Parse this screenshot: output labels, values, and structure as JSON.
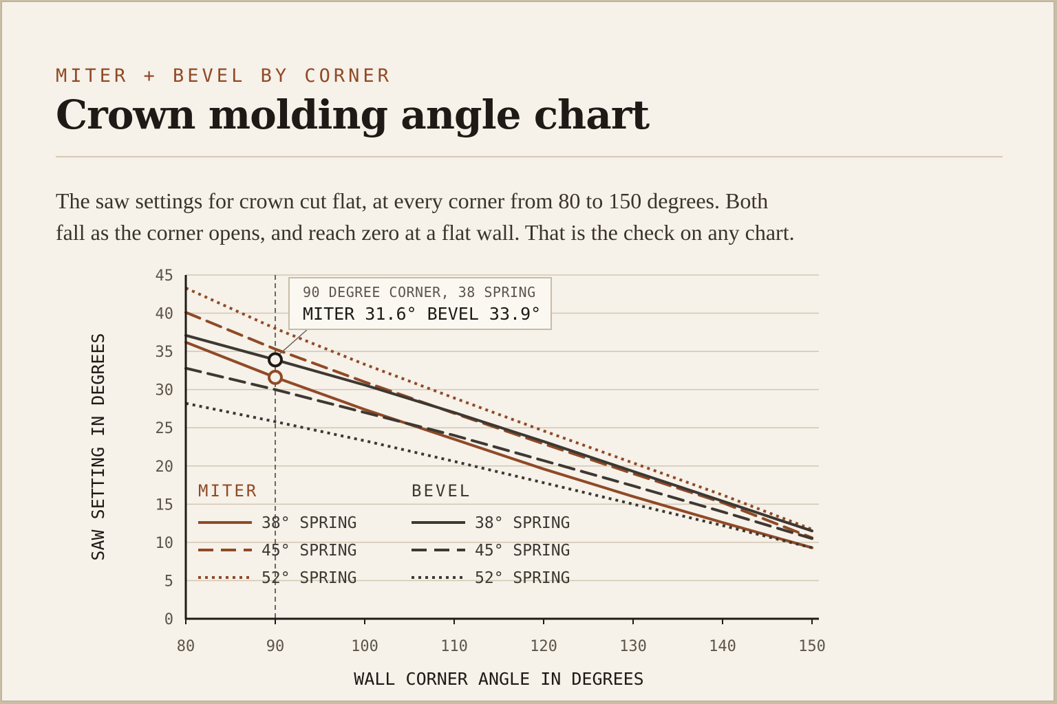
{
  "header": {
    "eyebrow": "MITER + BEVEL BY CORNER",
    "title": "Crown molding angle chart",
    "description_lines": [
      "The saw settings for crown cut flat, at every corner from 80 to 150 degrees. Both",
      "fall as the corner opens, and reach zero at a flat wall. That is the check on any chart."
    ]
  },
  "colors": {
    "miter": "#8f4a26",
    "bevel": "#3d3832",
    "grid": "#d2c7b1",
    "axis": "#1e1a15",
    "background": "#f6f1e9"
  },
  "chart_data": {
    "type": "line",
    "xlabel": "WALL CORNER ANGLE IN DEGREES",
    "ylabel": "SAW SETTING IN DEGREES",
    "xlim": [
      80,
      150
    ],
    "ylim": [
      0,
      45
    ],
    "x_ticks": [
      80,
      90,
      100,
      110,
      120,
      130,
      140,
      150
    ],
    "y_ticks": [
      0,
      5,
      10,
      15,
      20,
      25,
      30,
      35,
      40,
      45
    ],
    "grid": true,
    "x": [
      80,
      90,
      100,
      110,
      120,
      130,
      140,
      150
    ],
    "series": [
      {
        "group": "miter",
        "name": "38° SPRING",
        "style": "solid",
        "values": [
          36.2,
          31.6,
          27.4,
          23.5,
          19.6,
          16.0,
          12.6,
          9.3
        ]
      },
      {
        "group": "miter",
        "name": "45° SPRING",
        "style": "dashed",
        "values": [
          40.1,
          35.3,
          31.0,
          26.9,
          22.9,
          19.0,
          15.2,
          10.6
        ]
      },
      {
        "group": "miter",
        "name": "52° SPRING",
        "style": "dotted",
        "values": [
          43.3,
          38.0,
          33.3,
          28.9,
          24.6,
          20.4,
          16.2,
          11.7
        ]
      },
      {
        "group": "bevel",
        "name": "38° SPRING",
        "style": "solid",
        "values": [
          37.1,
          33.9,
          30.6,
          27.0,
          23.2,
          19.3,
          15.4,
          11.5
        ]
      },
      {
        "group": "bevel",
        "name": "45° SPRING",
        "style": "dashed",
        "values": [
          32.8,
          30.0,
          27.0,
          24.0,
          20.7,
          17.4,
          14.0,
          10.5
        ]
      },
      {
        "group": "bevel",
        "name": "52° SPRING",
        "style": "dotted",
        "values": [
          28.2,
          25.8,
          23.3,
          20.6,
          17.8,
          15.0,
          12.2,
          9.3
        ]
      }
    ],
    "legend": {
      "position": "bottom-left",
      "miter_title": "MITER",
      "bevel_title": "BEVEL"
    },
    "highlight": {
      "x": 90,
      "miter": 31.6,
      "bevel": 33.9,
      "label_top": "90 DEGREE CORNER, 38 SPRING",
      "label_bottom": "MITER 31.6° BEVEL 33.9°"
    }
  }
}
